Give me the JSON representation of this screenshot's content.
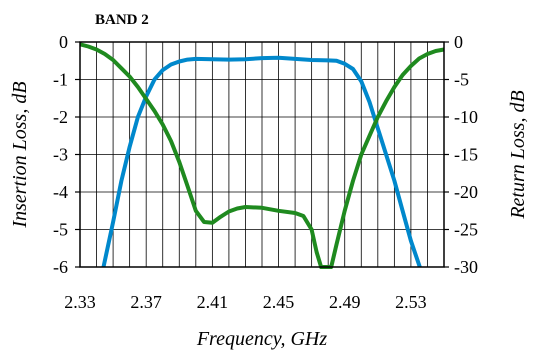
{
  "chart_data": {
    "type": "line",
    "title": "BAND 2",
    "xlabel": "Frequency, GHz",
    "ylabel_left": "Insertion Loss, dB",
    "ylabel_right": "Return Loss, dB",
    "xlim": [
      2.33,
      2.55
    ],
    "ylim_left": [
      -6,
      0
    ],
    "ylim_right": [
      -30,
      0
    ],
    "x_ticks": [
      "2.33",
      "2.37",
      "2.41",
      "2.45",
      "2.49",
      "2.53"
    ],
    "x_tick_values": [
      2.33,
      2.37,
      2.41,
      2.45,
      2.49,
      2.53
    ],
    "y_ticks_left": [
      "0",
      "-1",
      "-2",
      "-3",
      "-4",
      "-5",
      "-6"
    ],
    "y_tick_values_left": [
      0,
      -1,
      -2,
      -3,
      -4,
      -5,
      -6
    ],
    "y_ticks_right": [
      "0",
      "-5",
      "-10",
      "-15",
      "-20",
      "-25",
      "-30"
    ],
    "y_tick_values_right": [
      0,
      -5,
      -10,
      -15,
      -20,
      -25,
      -30
    ],
    "grid": true,
    "series": [
      {
        "color": "#0088cc",
        "axis": "left",
        "points": [
          [
            2.3442,
            -6.0
          ],
          [
            2.35,
            -4.8
          ],
          [
            2.355,
            -3.7
          ],
          [
            2.36,
            -2.8
          ],
          [
            2.365,
            -2.0
          ],
          [
            2.37,
            -1.45
          ],
          [
            2.375,
            -1.0
          ],
          [
            2.38,
            -0.75
          ],
          [
            2.385,
            -0.6
          ],
          [
            2.39,
            -0.52
          ],
          [
            2.395,
            -0.47
          ],
          [
            2.4,
            -0.45
          ],
          [
            2.41,
            -0.46
          ],
          [
            2.42,
            -0.47
          ],
          [
            2.43,
            -0.46
          ],
          [
            2.44,
            -0.43
          ],
          [
            2.45,
            -0.42
          ],
          [
            2.46,
            -0.45
          ],
          [
            2.47,
            -0.48
          ],
          [
            2.48,
            -0.49
          ],
          [
            2.485,
            -0.5
          ],
          [
            2.49,
            -0.58
          ],
          [
            2.495,
            -0.72
          ],
          [
            2.5,
            -1.05
          ],
          [
            2.505,
            -1.6
          ],
          [
            2.51,
            -2.3
          ],
          [
            2.515,
            -3.0
          ],
          [
            2.52,
            -3.7
          ],
          [
            2.525,
            -4.5
          ],
          [
            2.53,
            -5.3
          ],
          [
            2.5354,
            -6.0
          ]
        ]
      },
      {
        "color": "#1f8a1f",
        "axis": "right",
        "points": [
          [
            2.33,
            -0.3
          ],
          [
            2.335,
            -0.6
          ],
          [
            2.34,
            -1.0
          ],
          [
            2.345,
            -1.6
          ],
          [
            2.35,
            -2.4
          ],
          [
            2.355,
            -3.5
          ],
          [
            2.36,
            -4.6
          ],
          [
            2.365,
            -6.0
          ],
          [
            2.37,
            -7.6
          ],
          [
            2.375,
            -9.2
          ],
          [
            2.38,
            -11.0
          ],
          [
            2.385,
            -13.2
          ],
          [
            2.39,
            -16.0
          ],
          [
            2.395,
            -19.2
          ],
          [
            2.4,
            -22.5
          ],
          [
            2.405,
            -24.0
          ],
          [
            2.41,
            -24.1
          ],
          [
            2.415,
            -23.3
          ],
          [
            2.42,
            -22.6
          ],
          [
            2.425,
            -22.2
          ],
          [
            2.43,
            -22.0
          ],
          [
            2.44,
            -22.1
          ],
          [
            2.45,
            -22.5
          ],
          [
            2.46,
            -22.8
          ],
          [
            2.465,
            -23.2
          ],
          [
            2.47,
            -25.0
          ],
          [
            2.473,
            -28.0
          ],
          [
            2.4757,
            -30.0
          ],
          [
            2.4818,
            -30.0
          ],
          [
            2.485,
            -27.0
          ],
          [
            2.49,
            -22.5
          ],
          [
            2.495,
            -18.5
          ],
          [
            2.5,
            -15.0
          ],
          [
            2.505,
            -12.5
          ],
          [
            2.51,
            -10.0
          ],
          [
            2.515,
            -7.9
          ],
          [
            2.52,
            -6.0
          ],
          [
            2.525,
            -4.4
          ],
          [
            2.53,
            -3.2
          ],
          [
            2.535,
            -2.2
          ],
          [
            2.54,
            -1.6
          ],
          [
            2.545,
            -1.2
          ],
          [
            2.55,
            -1.0
          ]
        ]
      }
    ]
  }
}
